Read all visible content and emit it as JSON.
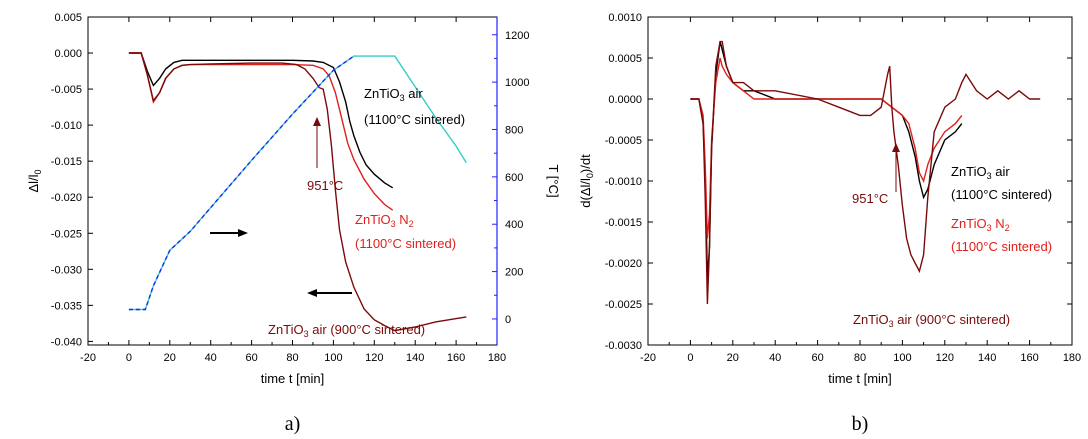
{
  "chart_data": [
    {
      "type": "line",
      "panel_label": "a)",
      "xlabel": "time  t   [min]",
      "ylabel": "Δl/l",
      "ylabel_sub": "0",
      "y2label": "T   [°C]",
      "xlim": [
        -20,
        180
      ],
      "ylim": [
        -0.0405,
        0.005
      ],
      "y2lim": [
        -110,
        1275
      ],
      "xticks": [
        -20,
        0,
        20,
        40,
        60,
        80,
        100,
        120,
        140,
        160,
        180
      ],
      "yticks": [
        0.005,
        0.0,
        -0.005,
        -0.01,
        -0.015,
        -0.02,
        -0.025,
        -0.03,
        -0.035,
        -0.04
      ],
      "ytick_labels": [
        "0.005",
        "0.000",
        "-0.005",
        "-0.010",
        "-0.015",
        "-0.020",
        "-0.025",
        "-0.030",
        "-0.035",
        "-0.040"
      ],
      "y2ticks": [
        0,
        200,
        400,
        600,
        800,
        1000,
        1200
      ],
      "colors": {
        "black": "#000000",
        "red": "#e0201b",
        "darkred": "#7a0a0a",
        "cyan": "#33cccc",
        "blue": "#2222ff"
      },
      "series": [
        {
          "color": "#000000",
          "axis": "left",
          "x": [
            0,
            6,
            9,
            12,
            15,
            18,
            22,
            26,
            30,
            40,
            60,
            80,
            90,
            95,
            100,
            103,
            106,
            108,
            110,
            113,
            116,
            120,
            125,
            129
          ],
          "y": [
            0,
            0,
            -0.0025,
            -0.0045,
            -0.0035,
            -0.0022,
            -0.0013,
            -0.001,
            -0.001,
            -0.001,
            -0.001,
            -0.001,
            -0.0011,
            -0.0013,
            -0.002,
            -0.004,
            -0.0068,
            -0.0095,
            -0.0115,
            -0.0138,
            -0.0155,
            -0.0168,
            -0.018,
            -0.0187
          ]
        },
        {
          "color": "#e0201b",
          "axis": "left",
          "x": [
            0,
            6,
            9,
            12,
            15,
            18,
            22,
            26,
            30,
            40,
            60,
            80,
            90,
            95,
            98,
            101,
            104,
            107,
            110,
            115,
            120,
            125,
            129
          ],
          "y": [
            0,
            0,
            -0.003,
            -0.0068,
            -0.0055,
            -0.0035,
            -0.0022,
            -0.0017,
            -0.0016,
            -0.0016,
            -0.0016,
            -0.0016,
            -0.0017,
            -0.0022,
            -0.0032,
            -0.0055,
            -0.009,
            -0.0125,
            -0.0148,
            -0.0175,
            -0.0195,
            -0.021,
            -0.0218
          ]
        },
        {
          "color": "#7a0a0a",
          "axis": "left",
          "x": [
            0,
            6,
            9,
            12,
            15,
            18,
            22,
            26,
            30,
            40,
            60,
            75,
            82,
            86,
            90,
            93,
            95,
            97,
            99,
            101,
            103,
            106,
            110,
            115,
            120,
            125,
            130,
            140,
            150,
            165
          ],
          "y": [
            0,
            0,
            -0.003,
            -0.0066,
            -0.0055,
            -0.0035,
            -0.0022,
            -0.0017,
            -0.0016,
            -0.0015,
            -0.0014,
            -0.0014,
            -0.0016,
            -0.0022,
            -0.0035,
            -0.0048,
            -0.005,
            -0.0078,
            -0.0128,
            -0.019,
            -0.0245,
            -0.029,
            -0.0325,
            -0.0355,
            -0.037,
            -0.0378,
            -0.0385,
            -0.038,
            -0.0373,
            -0.0366
          ]
        },
        {
          "color": "#33cccc",
          "axis": "right",
          "x": [
            0,
            8,
            12,
            20,
            30,
            40,
            60,
            80,
            100,
            110,
            120,
            130,
            140,
            150,
            160,
            165
          ],
          "y": [
            40,
            40,
            140,
            290,
            370,
            470,
            670,
            865,
            1050,
            1110,
            1110,
            1110,
            980,
            850,
            730,
            660
          ]
        },
        {
          "color": "#2222ff",
          "axis": "right",
          "dashed": true,
          "x": [
            0,
            8,
            12,
            20,
            30,
            40,
            60,
            80,
            100,
            110
          ],
          "y": [
            40,
            40,
            140,
            290,
            370,
            470,
            670,
            865,
            1050,
            1110
          ]
        }
      ],
      "annotations": [
        {
          "text": "ZnTiO",
          "sub": "3",
          "rest": " air",
          "line2": "(1100°C sintered)",
          "color": "#000000"
        },
        {
          "text": "ZnTiO",
          "sub": "3",
          "rest": "  N",
          "sub2": "2",
          "line2": "(1100°C sintered)",
          "color": "#e0201b"
        },
        {
          "text": "ZnTiO",
          "sub": "3",
          "rest": " air (900°C sintered)",
          "color": "#7a0a0a"
        },
        {
          "text": "951°C",
          "color": "#7a0a0a"
        }
      ]
    },
    {
      "type": "line",
      "panel_label": "b)",
      "xlabel": "time  t   [min]",
      "ylabel": "d(Δl/l",
      "ylabel_sub": "0",
      "ylabel_rest": ")/dt",
      "xlim": [
        -20,
        180
      ],
      "ylim": [
        -0.003,
        0.001
      ],
      "xticks": [
        -20,
        0,
        20,
        40,
        60,
        80,
        100,
        120,
        140,
        160,
        180
      ],
      "yticks": [
        0.001,
        0.0005,
        0.0,
        -0.0005,
        -0.001,
        -0.0015,
        -0.002,
        -0.0025,
        -0.003
      ],
      "ytick_labels": [
        "0.0010",
        "0.0005",
        "0.0000",
        "-0.0005",
        "-0.0010",
        "-0.0015",
        "-0.0020",
        "-0.0025",
        "-0.0030"
      ],
      "series": [
        {
          "color": "#000000",
          "x": [
            0,
            4,
            6,
            7,
            8,
            9,
            10,
            12,
            14,
            15,
            17,
            20,
            25,
            30,
            40,
            60,
            80,
            90,
            95,
            100,
            103,
            106,
            108,
            110,
            112,
            115,
            120,
            125,
            128
          ],
          "y": [
            0,
            0,
            -0.0003,
            -0.0009,
            -0.0022,
            -0.0018,
            -0.0006,
            0.0003,
            0.0007,
            0.0006,
            0.0004,
            0.0002,
            0.0001,
            0.0001,
            0.0,
            0.0,
            0.0,
            0.0,
            -0.0001,
            -0.0002,
            -0.0004,
            -0.0007,
            -0.001,
            -0.0012,
            -0.0011,
            -0.0008,
            -0.0005,
            -0.0004,
            -0.0003
          ]
        },
        {
          "color": "#e0201b",
          "x": [
            0,
            4,
            6,
            7,
            8,
            9,
            10,
            12,
            14,
            15,
            17,
            20,
            25,
            30,
            40,
            60,
            80,
            90,
            95,
            100,
            103,
            106,
            108,
            110,
            112,
            115,
            120,
            125,
            128
          ],
          "y": [
            0,
            0,
            -0.0002,
            -0.0008,
            -0.0017,
            -0.0014,
            -0.0005,
            0.0002,
            0.0005,
            0.0004,
            0.0003,
            0.0002,
            0.0001,
            0.0,
            0.0,
            0.0,
            0.0,
            0.0,
            -0.0001,
            -0.0002,
            -0.0003,
            -0.0006,
            -0.0009,
            -0.001,
            -0.0008,
            -0.0006,
            -0.0004,
            -0.0003,
            -0.0002
          ]
        },
        {
          "color": "#7a0a0a",
          "x": [
            0,
            4,
            6,
            7,
            8,
            9,
            10,
            12,
            14,
            15,
            17,
            20,
            25,
            30,
            40,
            60,
            70,
            80,
            85,
            90,
            93,
            94,
            95,
            96,
            98,
            100,
            102,
            104,
            106,
            108,
            110,
            112,
            115,
            120,
            125,
            128,
            130,
            135,
            140,
            145,
            150,
            155,
            160,
            165
          ],
          "y": [
            0,
            0,
            -0.0003,
            -0.0012,
            -0.0025,
            -0.0018,
            -0.0006,
            0.0004,
            0.0007,
            0.0007,
            0.0004,
            0.0002,
            0.0002,
            0.0001,
            0.0001,
            0.0,
            -0.0001,
            -0.0002,
            -0.0002,
            -0.0001,
            0.0003,
            0.0004,
            -0.0001,
            -0.0004,
            -0.0008,
            -0.0013,
            -0.0017,
            -0.0019,
            -0.002,
            -0.0021,
            -0.0019,
            -0.0012,
            -0.0004,
            -0.0001,
            0.0,
            0.0002,
            0.0003,
            0.0001,
            0.0,
            0.0001,
            0.0,
            0.0001,
            0.0,
            0.0
          ]
        }
      ],
      "annotations": [
        {
          "text": "ZnTiO",
          "sub": "3",
          "rest": " air",
          "line2": "(1100°C sintered)",
          "color": "#000000"
        },
        {
          "text": "ZnTiO",
          "sub": "3",
          "rest": "  N",
          "sub2": "2",
          "line2": "(1100°C sintered)",
          "color": "#e0201b"
        },
        {
          "text": "ZnTiO",
          "sub": "3",
          "rest": " air (900°C sintered)",
          "color": "#7a0a0a"
        },
        {
          "text": "951°C",
          "color": "#7a0a0a"
        }
      ]
    }
  ]
}
